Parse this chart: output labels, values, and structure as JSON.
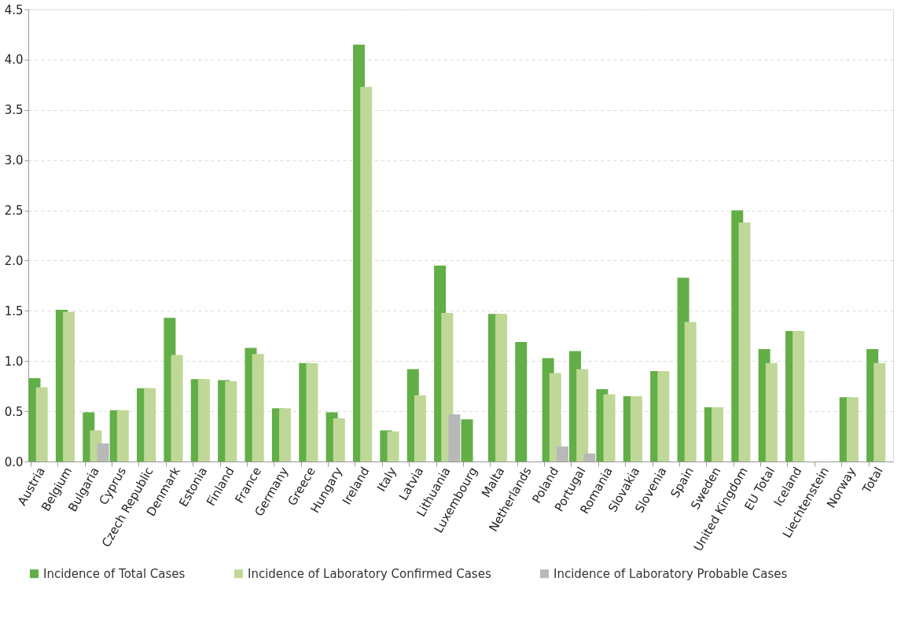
{
  "chart_data": {
    "type": "bar",
    "categories": [
      "Austria",
      "Belgium",
      "Bulgaria",
      "Cyprus",
      "Czech Republic",
      "Denmark",
      "Estonia",
      "Finland",
      "France",
      "Germany",
      "Greece",
      "Hungary",
      "Ireland",
      "Italy",
      "Latvia",
      "Lithuania",
      "Luxembourg",
      "Malta",
      "Netherlands",
      "Poland",
      "Portugal",
      "Romania",
      "Slovakia",
      "Slovenia",
      "Spain",
      "Sweden",
      "United Kingdom",
      "EU Total",
      "Iceland",
      "Liechtenstein",
      "Norway",
      "Total"
    ],
    "series": [
      {
        "name": "Incidence of Total Cases",
        "color": "#62ae47",
        "values": [
          0.83,
          1.51,
          0.49,
          0.51,
          0.73,
          1.43,
          0.82,
          0.81,
          1.13,
          0.53,
          0.98,
          0.49,
          4.15,
          0.31,
          0.92,
          1.95,
          0.42,
          1.47,
          1.19,
          1.03,
          1.1,
          0.72,
          0.65,
          0.9,
          1.83,
          0.54,
          2.5,
          1.12,
          1.3,
          null,
          0.64,
          1.12
        ]
      },
      {
        "name": "Incidence of Laboratory Confirmed Cases",
        "color": "#bfd897",
        "values": [
          0.74,
          1.49,
          0.31,
          0.51,
          0.73,
          1.06,
          0.82,
          0.8,
          1.07,
          0.53,
          0.98,
          0.43,
          3.73,
          0.3,
          0.66,
          1.48,
          null,
          1.47,
          null,
          0.88,
          0.92,
          0.67,
          0.65,
          0.9,
          1.39,
          0.54,
          2.38,
          0.98,
          1.3,
          null,
          0.64,
          0.98
        ]
      },
      {
        "name": "Incidence of Laboratory Probable Cases",
        "color": "#b8b8b8",
        "values": [
          null,
          null,
          0.18,
          null,
          null,
          null,
          null,
          null,
          null,
          null,
          null,
          null,
          null,
          null,
          null,
          0.47,
          null,
          null,
          null,
          0.15,
          0.08,
          null,
          null,
          null,
          null,
          null,
          null,
          null,
          null,
          null,
          null,
          null
        ]
      }
    ],
    "ylim": [
      0,
      4.5
    ],
    "yticks": [
      {
        "value": 0,
        "label": "0.0"
      },
      {
        "value": 0.5,
        "label": "0.5"
      },
      {
        "value": 1,
        "label": "1.0"
      },
      {
        "value": 1.5,
        "label": "1.5"
      },
      {
        "value": 2,
        "label": "2.0"
      },
      {
        "value": 2.5,
        "label": "2.5"
      },
      {
        "value": 3,
        "label": "3.0"
      },
      {
        "value": 3.5,
        "label": "3.5"
      },
      {
        "value": 4,
        "label": "4.0"
      },
      {
        "value": 4.5,
        "label": "4.5"
      }
    ],
    "grid": "y",
    "legend": "bottom"
  }
}
